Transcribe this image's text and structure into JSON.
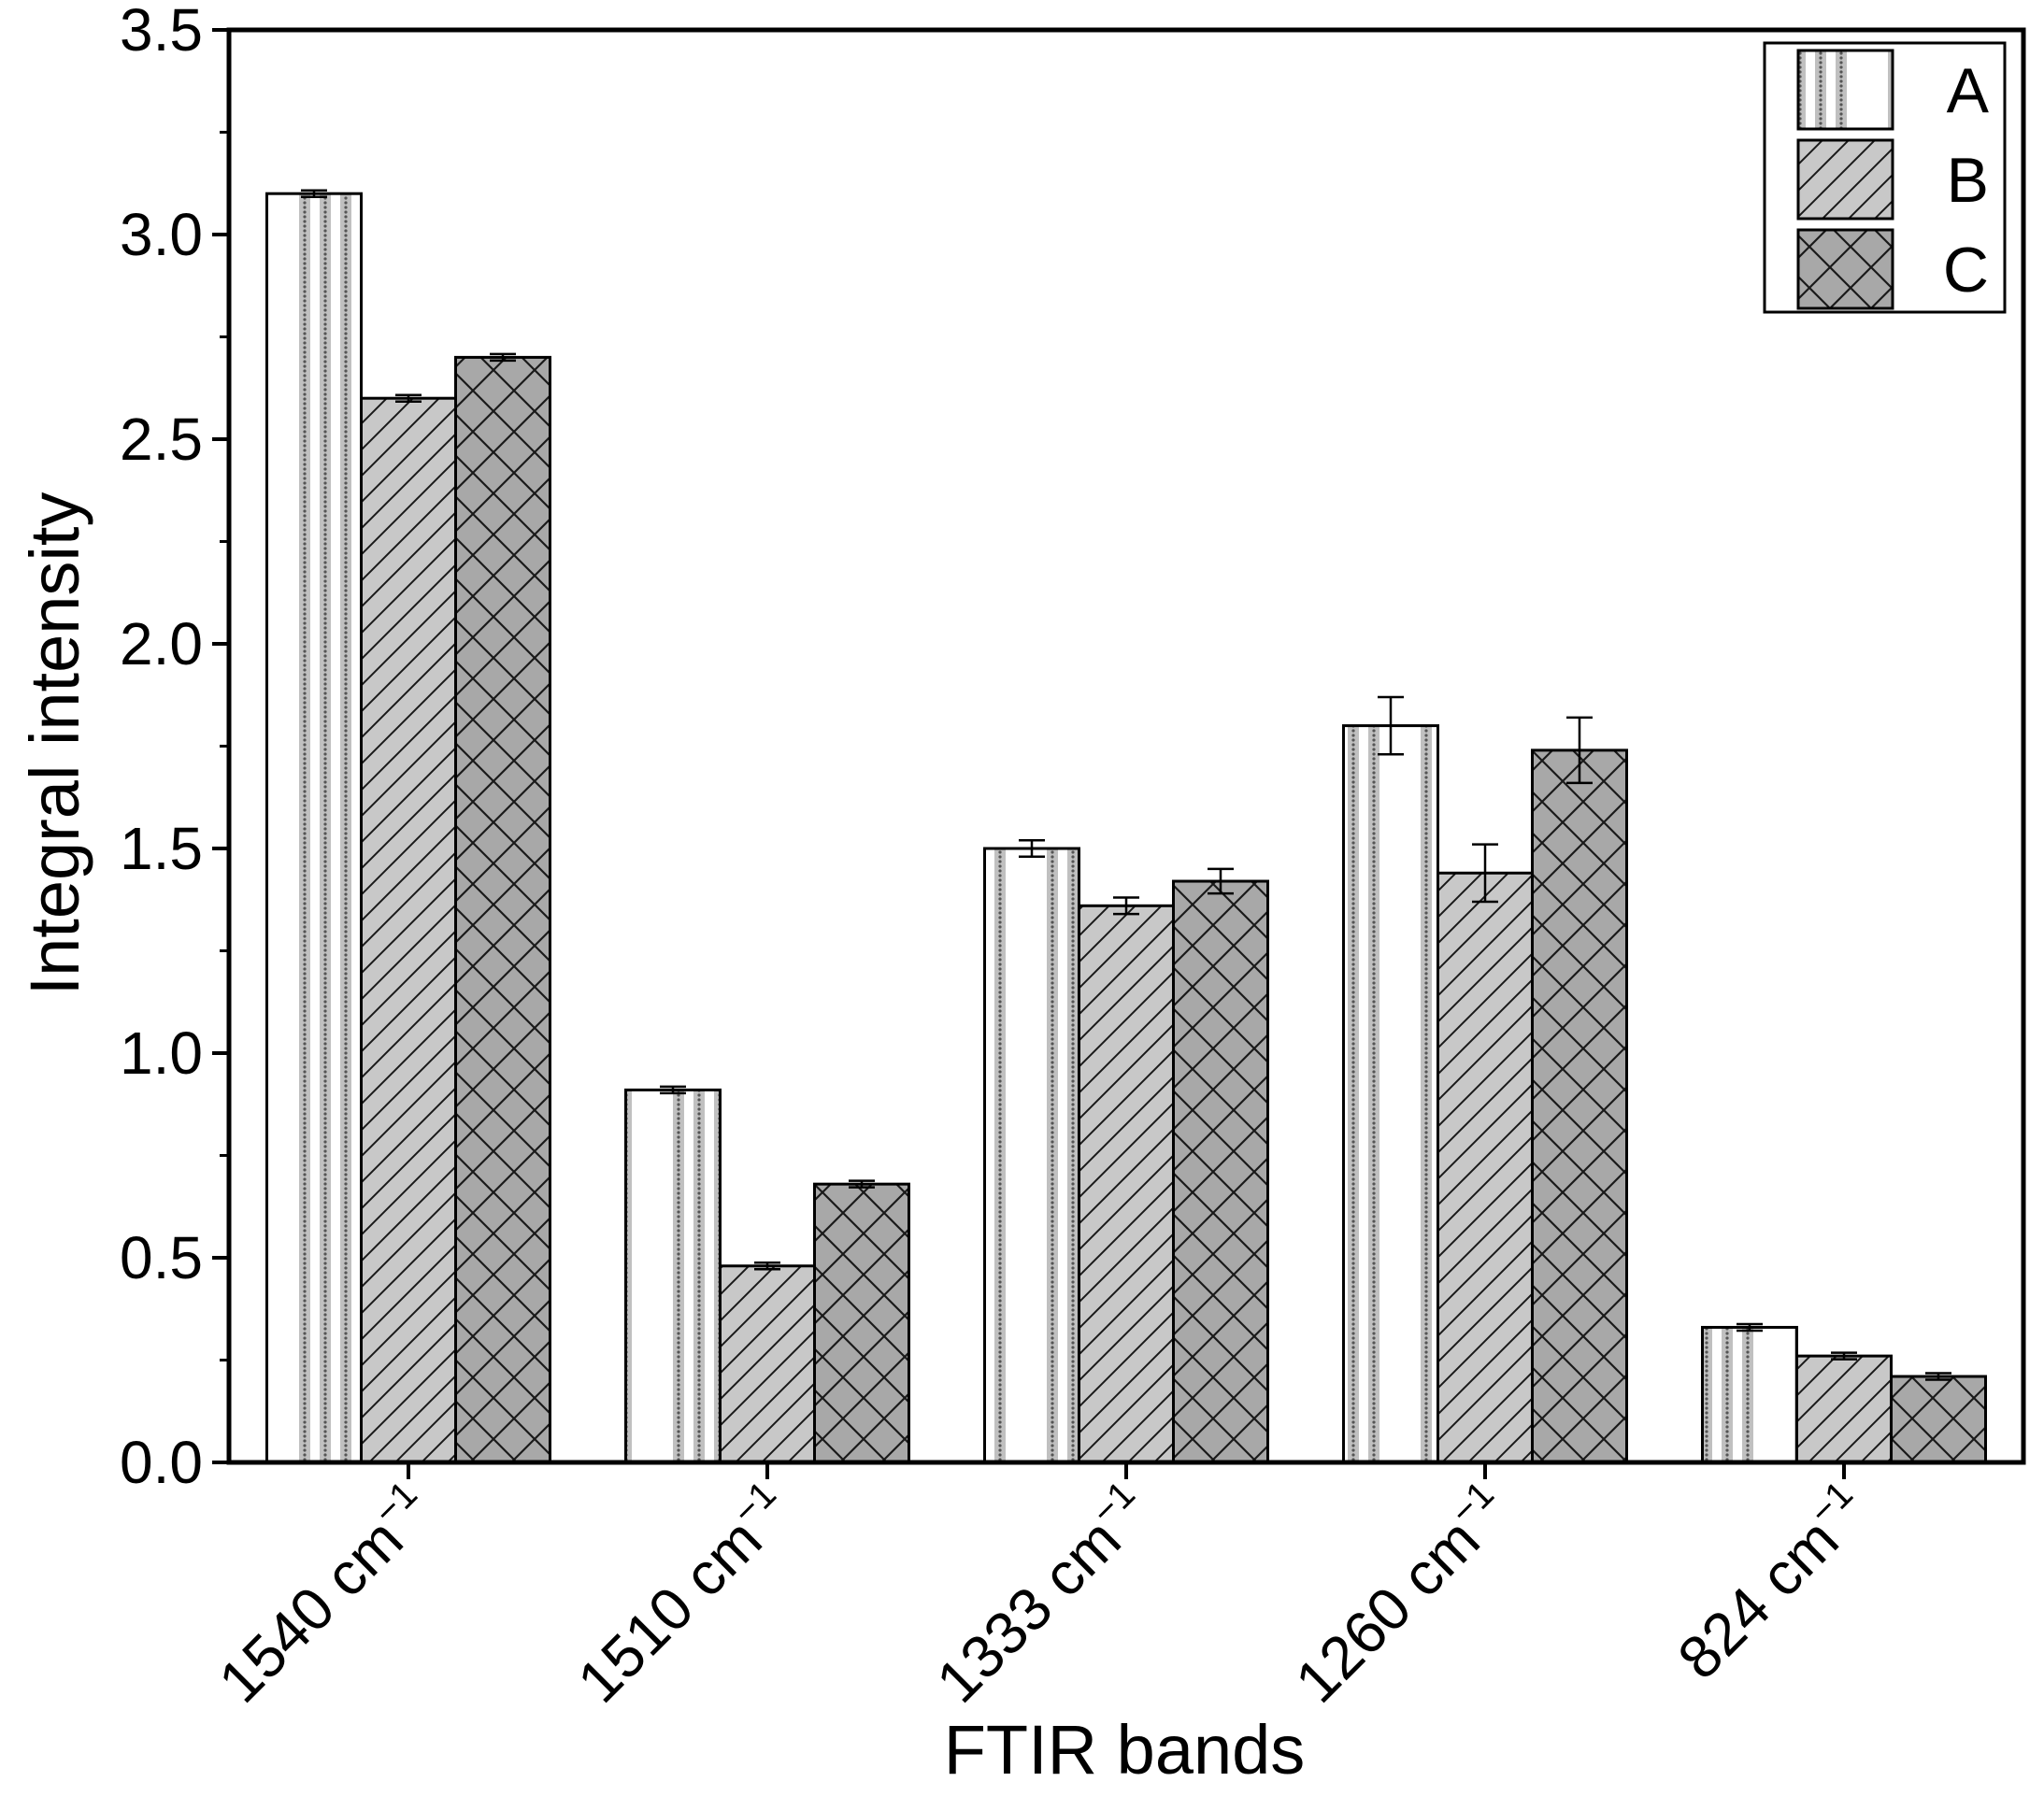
{
  "chart_data": {
    "type": "bar",
    "title": "",
    "xlabel": "FTIR bands",
    "ylabel": "Integral intensity",
    "categories": [
      {
        "base": "1540 cm",
        "sup": "−1"
      },
      {
        "base": "1510 cm",
        "sup": "−1"
      },
      {
        "base": "1333 cm",
        "sup": "−1"
      },
      {
        "base": "1260 cm",
        "sup": "−1"
      },
      {
        "base": "824 cm",
        "sup": "−1"
      }
    ],
    "ylim": [
      0,
      3.5
    ],
    "yticks": [
      "0.0",
      "0.5",
      "1.0",
      "1.5",
      "2.0",
      "2.5",
      "3.0",
      "3.5"
    ],
    "series": [
      {
        "name": "A",
        "values": [
          3.1,
          0.91,
          1.5,
          1.8,
          0.33
        ],
        "errors": [
          0.008,
          0.008,
          0.02,
          0.07,
          0.008
        ],
        "pattern": "dots",
        "color": "#ffffff"
      },
      {
        "name": "B",
        "values": [
          2.6,
          0.48,
          1.36,
          1.44,
          0.26
        ],
        "errors": [
          0.008,
          0.008,
          0.02,
          0.07,
          0.008
        ],
        "pattern": "diagonal",
        "color": "#c8c8c8"
      },
      {
        "name": "C",
        "values": [
          2.7,
          0.68,
          1.42,
          1.74,
          0.21
        ],
        "errors": [
          0.008,
          0.008,
          0.03,
          0.08,
          0.008
        ],
        "pattern": "crosshatch",
        "color": "#a8a8a8"
      }
    ],
    "legend_position": "top-right",
    "grid": false
  }
}
